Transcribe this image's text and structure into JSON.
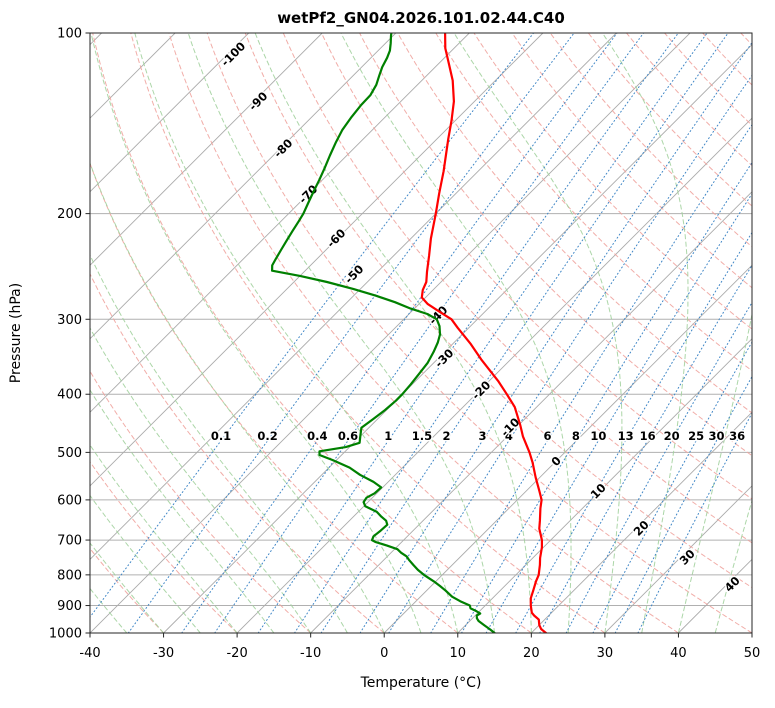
{
  "title": "wetPf2_GN04.2026.101.02.44.C40",
  "axes": {
    "xlabel": "Temperature (°C)",
    "ylabel": "Pressure (hPa)",
    "x_ticks": [
      -40,
      -30,
      -20,
      -10,
      0,
      10,
      20,
      30,
      40,
      50
    ],
    "y_ticks": [
      100,
      200,
      300,
      400,
      500,
      600,
      700,
      800,
      900,
      1000
    ]
  },
  "chart_data": {
    "type": "line",
    "subtype": "skew-t-log-p",
    "title": "wetPf2_GN04.2026.101.02.44.C40",
    "xlabel": "Temperature (°C)",
    "ylabel": "Pressure (hPa)",
    "x_range": [
      -40,
      50
    ],
    "p_range": [
      100,
      1000
    ],
    "skew_deg": 45,
    "grid": true,
    "series": [
      {
        "name": "temperature",
        "color": "#ff0000",
        "width": 2.2,
        "points": [
          [
            1000,
            22.0
          ],
          [
            985,
            20.8
          ],
          [
            970,
            20.0
          ],
          [
            950,
            19.2
          ],
          [
            935,
            18.0
          ],
          [
            925,
            17.3
          ],
          [
            900,
            16.2
          ],
          [
            875,
            15.2
          ],
          [
            850,
            14.5
          ],
          [
            820,
            13.6
          ],
          [
            800,
            13.1
          ],
          [
            770,
            11.9
          ],
          [
            750,
            11.0
          ],
          [
            720,
            9.8
          ],
          [
            700,
            8.8
          ],
          [
            670,
            6.9
          ],
          [
            650,
            5.9
          ],
          [
            620,
            4.3
          ],
          [
            600,
            3.3
          ],
          [
            580,
            1.8
          ],
          [
            550,
            -0.6
          ],
          [
            520,
            -3.0
          ],
          [
            500,
            -4.8
          ],
          [
            470,
            -7.9
          ],
          [
            450,
            -9.8
          ],
          [
            420,
            -13.0
          ],
          [
            400,
            -15.8
          ],
          [
            380,
            -18.8
          ],
          [
            350,
            -24.0
          ],
          [
            330,
            -27.5
          ],
          [
            310,
            -31.5
          ],
          [
            300,
            -33.5
          ],
          [
            292,
            -36.0
          ],
          [
            283,
            -38.8
          ],
          [
            276,
            -40.5
          ],
          [
            268,
            -41.4
          ],
          [
            260,
            -42.0
          ],
          [
            250,
            -43.3
          ],
          [
            235,
            -45.2
          ],
          [
            220,
            -47.3
          ],
          [
            200,
            -50.0
          ],
          [
            185,
            -52.3
          ],
          [
            170,
            -54.7
          ],
          [
            150,
            -58.5
          ],
          [
            140,
            -60.5
          ],
          [
            130,
            -62.8
          ],
          [
            120,
            -65.8
          ],
          [
            112,
            -68.8
          ],
          [
            106,
            -71.2
          ],
          [
            100,
            -73.3
          ]
        ]
      },
      {
        "name": "dewpoint",
        "color": "#008000",
        "width": 2.2,
        "points": [
          [
            1000,
            15.0
          ],
          [
            985,
            13.8
          ],
          [
            970,
            12.5
          ],
          [
            955,
            11.2
          ],
          [
            945,
            10.6
          ],
          [
            935,
            10.2
          ],
          [
            928,
            10.4
          ],
          [
            920,
            9.6
          ],
          [
            910,
            8.4
          ],
          [
            900,
            7.9
          ],
          [
            885,
            6.0
          ],
          [
            870,
            4.3
          ],
          [
            850,
            2.6
          ],
          [
            835,
            1.2
          ],
          [
            820,
            -0.3
          ],
          [
            800,
            -2.5
          ],
          [
            785,
            -4.0
          ],
          [
            770,
            -5.3
          ],
          [
            755,
            -6.6
          ],
          [
            745,
            -7.4
          ],
          [
            735,
            -8.6
          ],
          [
            725,
            -9.6
          ],
          [
            715,
            -11.5
          ],
          [
            705,
            -13.6
          ],
          [
            700,
            -14.3
          ],
          [
            690,
            -14.6
          ],
          [
            675,
            -14.4
          ],
          [
            660,
            -14.3
          ],
          [
            650,
            -15.0
          ],
          [
            640,
            -16.2
          ],
          [
            628,
            -17.5
          ],
          [
            615,
            -19.8
          ],
          [
            605,
            -20.6
          ],
          [
            595,
            -20.8
          ],
          [
            585,
            -20.3
          ],
          [
            572,
            -20.2
          ],
          [
            560,
            -22.0
          ],
          [
            545,
            -24.8
          ],
          [
            530,
            -27.2
          ],
          [
            515,
            -30.5
          ],
          [
            505,
            -33.0
          ],
          [
            498,
            -33.5
          ],
          [
            490,
            -30.5
          ],
          [
            482,
            -29.2
          ],
          [
            470,
            -30.0
          ],
          [
            455,
            -31.0
          ],
          [
            440,
            -30.6
          ],
          [
            425,
            -30.2
          ],
          [
            410,
            -30.0
          ],
          [
            400,
            -30.0
          ],
          [
            385,
            -30.2
          ],
          [
            370,
            -30.5
          ],
          [
            355,
            -30.8
          ],
          [
            340,
            -31.5
          ],
          [
            328,
            -32.2
          ],
          [
            318,
            -33.0
          ],
          [
            308,
            -34.2
          ],
          [
            300,
            -35.5
          ],
          [
            294,
            -37.5
          ],
          [
            288,
            -40.5
          ],
          [
            281,
            -43.5
          ],
          [
            274,
            -47.0
          ],
          [
            267,
            -51.0
          ],
          [
            260,
            -55.5
          ],
          [
            254,
            -60.0
          ],
          [
            249,
            -64.5
          ],
          [
            244,
            -65.2
          ],
          [
            238,
            -65.6
          ],
          [
            230,
            -66.1
          ],
          [
            222,
            -66.6
          ],
          [
            214,
            -67.1
          ],
          [
            206,
            -67.6
          ],
          [
            200,
            -68.0
          ],
          [
            192,
            -68.8
          ],
          [
            184,
            -69.6
          ],
          [
            176,
            -70.4
          ],
          [
            168,
            -71.3
          ],
          [
            160,
            -72.3
          ],
          [
            152,
            -73.3
          ],
          [
            145,
            -74.1
          ],
          [
            138,
            -74.6
          ],
          [
            132,
            -74.9
          ],
          [
            127,
            -75.0
          ],
          [
            122,
            -75.6
          ],
          [
            118,
            -76.4
          ],
          [
            114,
            -77.2
          ],
          [
            110,
            -77.8
          ],
          [
            107,
            -78.4
          ],
          [
            104,
            -79.3
          ],
          [
            101,
            -80.3
          ],
          [
            100,
            -80.6
          ]
        ]
      }
    ],
    "background": {
      "isotherms": {
        "start": -120,
        "end": 50,
        "step": 10,
        "color": "#ababab",
        "width": 0.9
      },
      "pressure_lines_color": "#b0b0b0",
      "dry_adiabats": {
        "start": -40,
        "end": 190,
        "step": 10,
        "color": "#f0a49e",
        "width": 1
      },
      "moist_adiabats": {
        "start": -40,
        "end": 70,
        "step": 5,
        "color": "#a3d19e",
        "width": 1
      },
      "mixing_ratio_g_kg": [
        0.1,
        0.2,
        0.4,
        0.6,
        1,
        1.5,
        2,
        3,
        4,
        6,
        8,
        10,
        13,
        16,
        20,
        25,
        30,
        36
      ],
      "mixing_color": "#3f86c6"
    },
    "isotherm_labels": [
      {
        "value": -100,
        "x": 236,
        "y": 57
      },
      {
        "value": -90,
        "x": 261,
        "y": 104
      },
      {
        "value": -80,
        "x": 286,
        "y": 151
      },
      {
        "value": -70,
        "x": 311,
        "y": 197
      },
      {
        "value": -60,
        "x": 339,
        "y": 241
      },
      {
        "value": -50,
        "x": 357,
        "y": 277
      },
      {
        "value": -40,
        "x": 441,
        "y": 318
      },
      {
        "value": -30,
        "x": 447,
        "y": 361
      },
      {
        "value": -20,
        "x": 484,
        "y": 393
      },
      {
        "value": -10,
        "x": 513,
        "y": 430
      },
      {
        "value": 0,
        "x": 559,
        "y": 464
      },
      {
        "value": 10,
        "x": 601,
        "y": 494
      },
      {
        "value": 20,
        "x": 644,
        "y": 531
      },
      {
        "value": 30,
        "x": 690,
        "y": 560
      },
      {
        "value": 40,
        "x": 735,
        "y": 587
      }
    ],
    "isotherm_label_colors": {
      "negative": "#2e7ebc",
      "zero": "#7f7f7f",
      "positive": "#c94f4f"
    },
    "mixing_labels": {
      "pressure": 478,
      "y": 440
    }
  }
}
